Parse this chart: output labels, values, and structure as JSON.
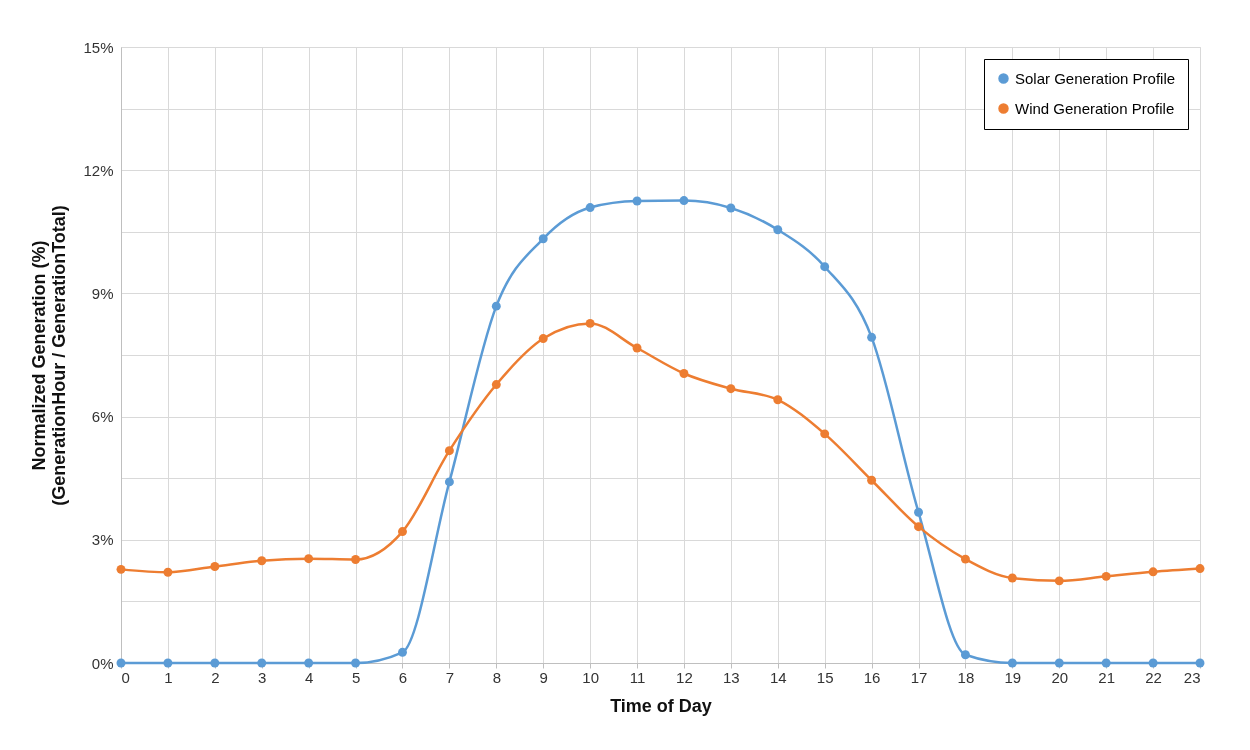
{
  "chart_data": {
    "type": "line",
    "xlabel": "Time of Day",
    "ylabel": "Normalized Generation (%)\n(GenerationHour / GenerationTotal)",
    "x": [
      0,
      1,
      2,
      3,
      4,
      5,
      6,
      7,
      8,
      9,
      10,
      11,
      12,
      13,
      14,
      15,
      16,
      17,
      18,
      19,
      20,
      21,
      22,
      23
    ],
    "xlim": [
      0,
      23
    ],
    "xticks": [
      0,
      1,
      2,
      3,
      4,
      5,
      6,
      7,
      8,
      9,
      10,
      11,
      12,
      13,
      14,
      15,
      16,
      17,
      18,
      19,
      20,
      21,
      22,
      23
    ],
    "ylim": [
      0,
      15
    ],
    "yticks": [
      {
        "value": 0,
        "label": "0%"
      },
      {
        "value": 1.5,
        "label": null
      },
      {
        "value": 3,
        "label": "3%"
      },
      {
        "value": 4.5,
        "label": null
      },
      {
        "value": 6,
        "label": "6%"
      },
      {
        "value": 7.5,
        "label": null
      },
      {
        "value": 9,
        "label": "9%"
      },
      {
        "value": 10.5,
        "label": null
      },
      {
        "value": 12,
        "label": "12%"
      },
      {
        "value": 13.5,
        "label": null
      },
      {
        "value": 15,
        "label": "15%"
      }
    ],
    "series": [
      {
        "name": "Solar Generation Profile",
        "color": "#5b9bd5",
        "values": [
          0,
          0,
          0,
          0,
          0,
          0,
          0.26,
          4.41,
          8.69,
          10.33,
          11.09,
          11.25,
          11.26,
          11.08,
          10.55,
          9.65,
          7.93,
          3.67,
          0.2,
          0,
          0,
          0,
          0,
          0
        ]
      },
      {
        "name": "Wind Generation Profile",
        "color": "#ed7d31",
        "values": [
          2.28,
          2.21,
          2.35,
          2.49,
          2.54,
          2.52,
          3.2,
          5.17,
          6.78,
          7.9,
          8.27,
          7.67,
          7.05,
          6.68,
          6.41,
          5.58,
          4.45,
          3.32,
          2.53,
          2.07,
          2.0,
          2.11,
          2.22,
          2.3
        ]
      }
    ],
    "marker": "circle",
    "line_style": "solid",
    "grid": true,
    "legend": "top right"
  }
}
